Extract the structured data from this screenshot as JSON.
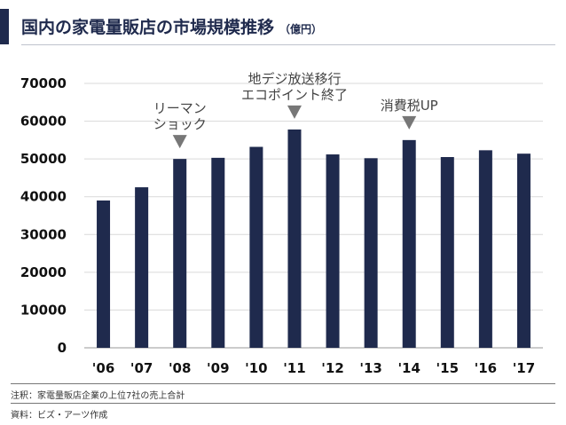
{
  "header": {
    "title": "国内の家電量販店の市場規模推移",
    "unit": "（億円）"
  },
  "chart_data": {
    "type": "bar",
    "title": "国内の家電量販店の市場規模推移",
    "ylabel": "億円",
    "categories": [
      "'06",
      "'07",
      "'08",
      "'09",
      "'10",
      "'11",
      "'12",
      "'13",
      "'14",
      "'15",
      "'16",
      "'17"
    ],
    "values": [
      39000,
      42500,
      50000,
      50300,
      53200,
      57800,
      51200,
      50200,
      55000,
      50500,
      52300,
      51400
    ],
    "ylim": [
      0,
      70000
    ],
    "yticks": [
      0,
      10000,
      20000,
      30000,
      40000,
      50000,
      60000,
      70000
    ],
    "grid": true,
    "bar_color": "#1f2a4d",
    "annotations": [
      {
        "category": "'08",
        "lines": [
          "リーマン",
          "ショック"
        ]
      },
      {
        "category": "'11",
        "lines": [
          "地デジ放送移行",
          "エコポイント終了"
        ]
      },
      {
        "category": "'14",
        "lines": [
          "消費税UP"
        ]
      }
    ]
  },
  "notes": {
    "note": "注釈：家電量販店企業の上位7社の売上合計",
    "source": "資料：ビズ・アーツ作成"
  }
}
